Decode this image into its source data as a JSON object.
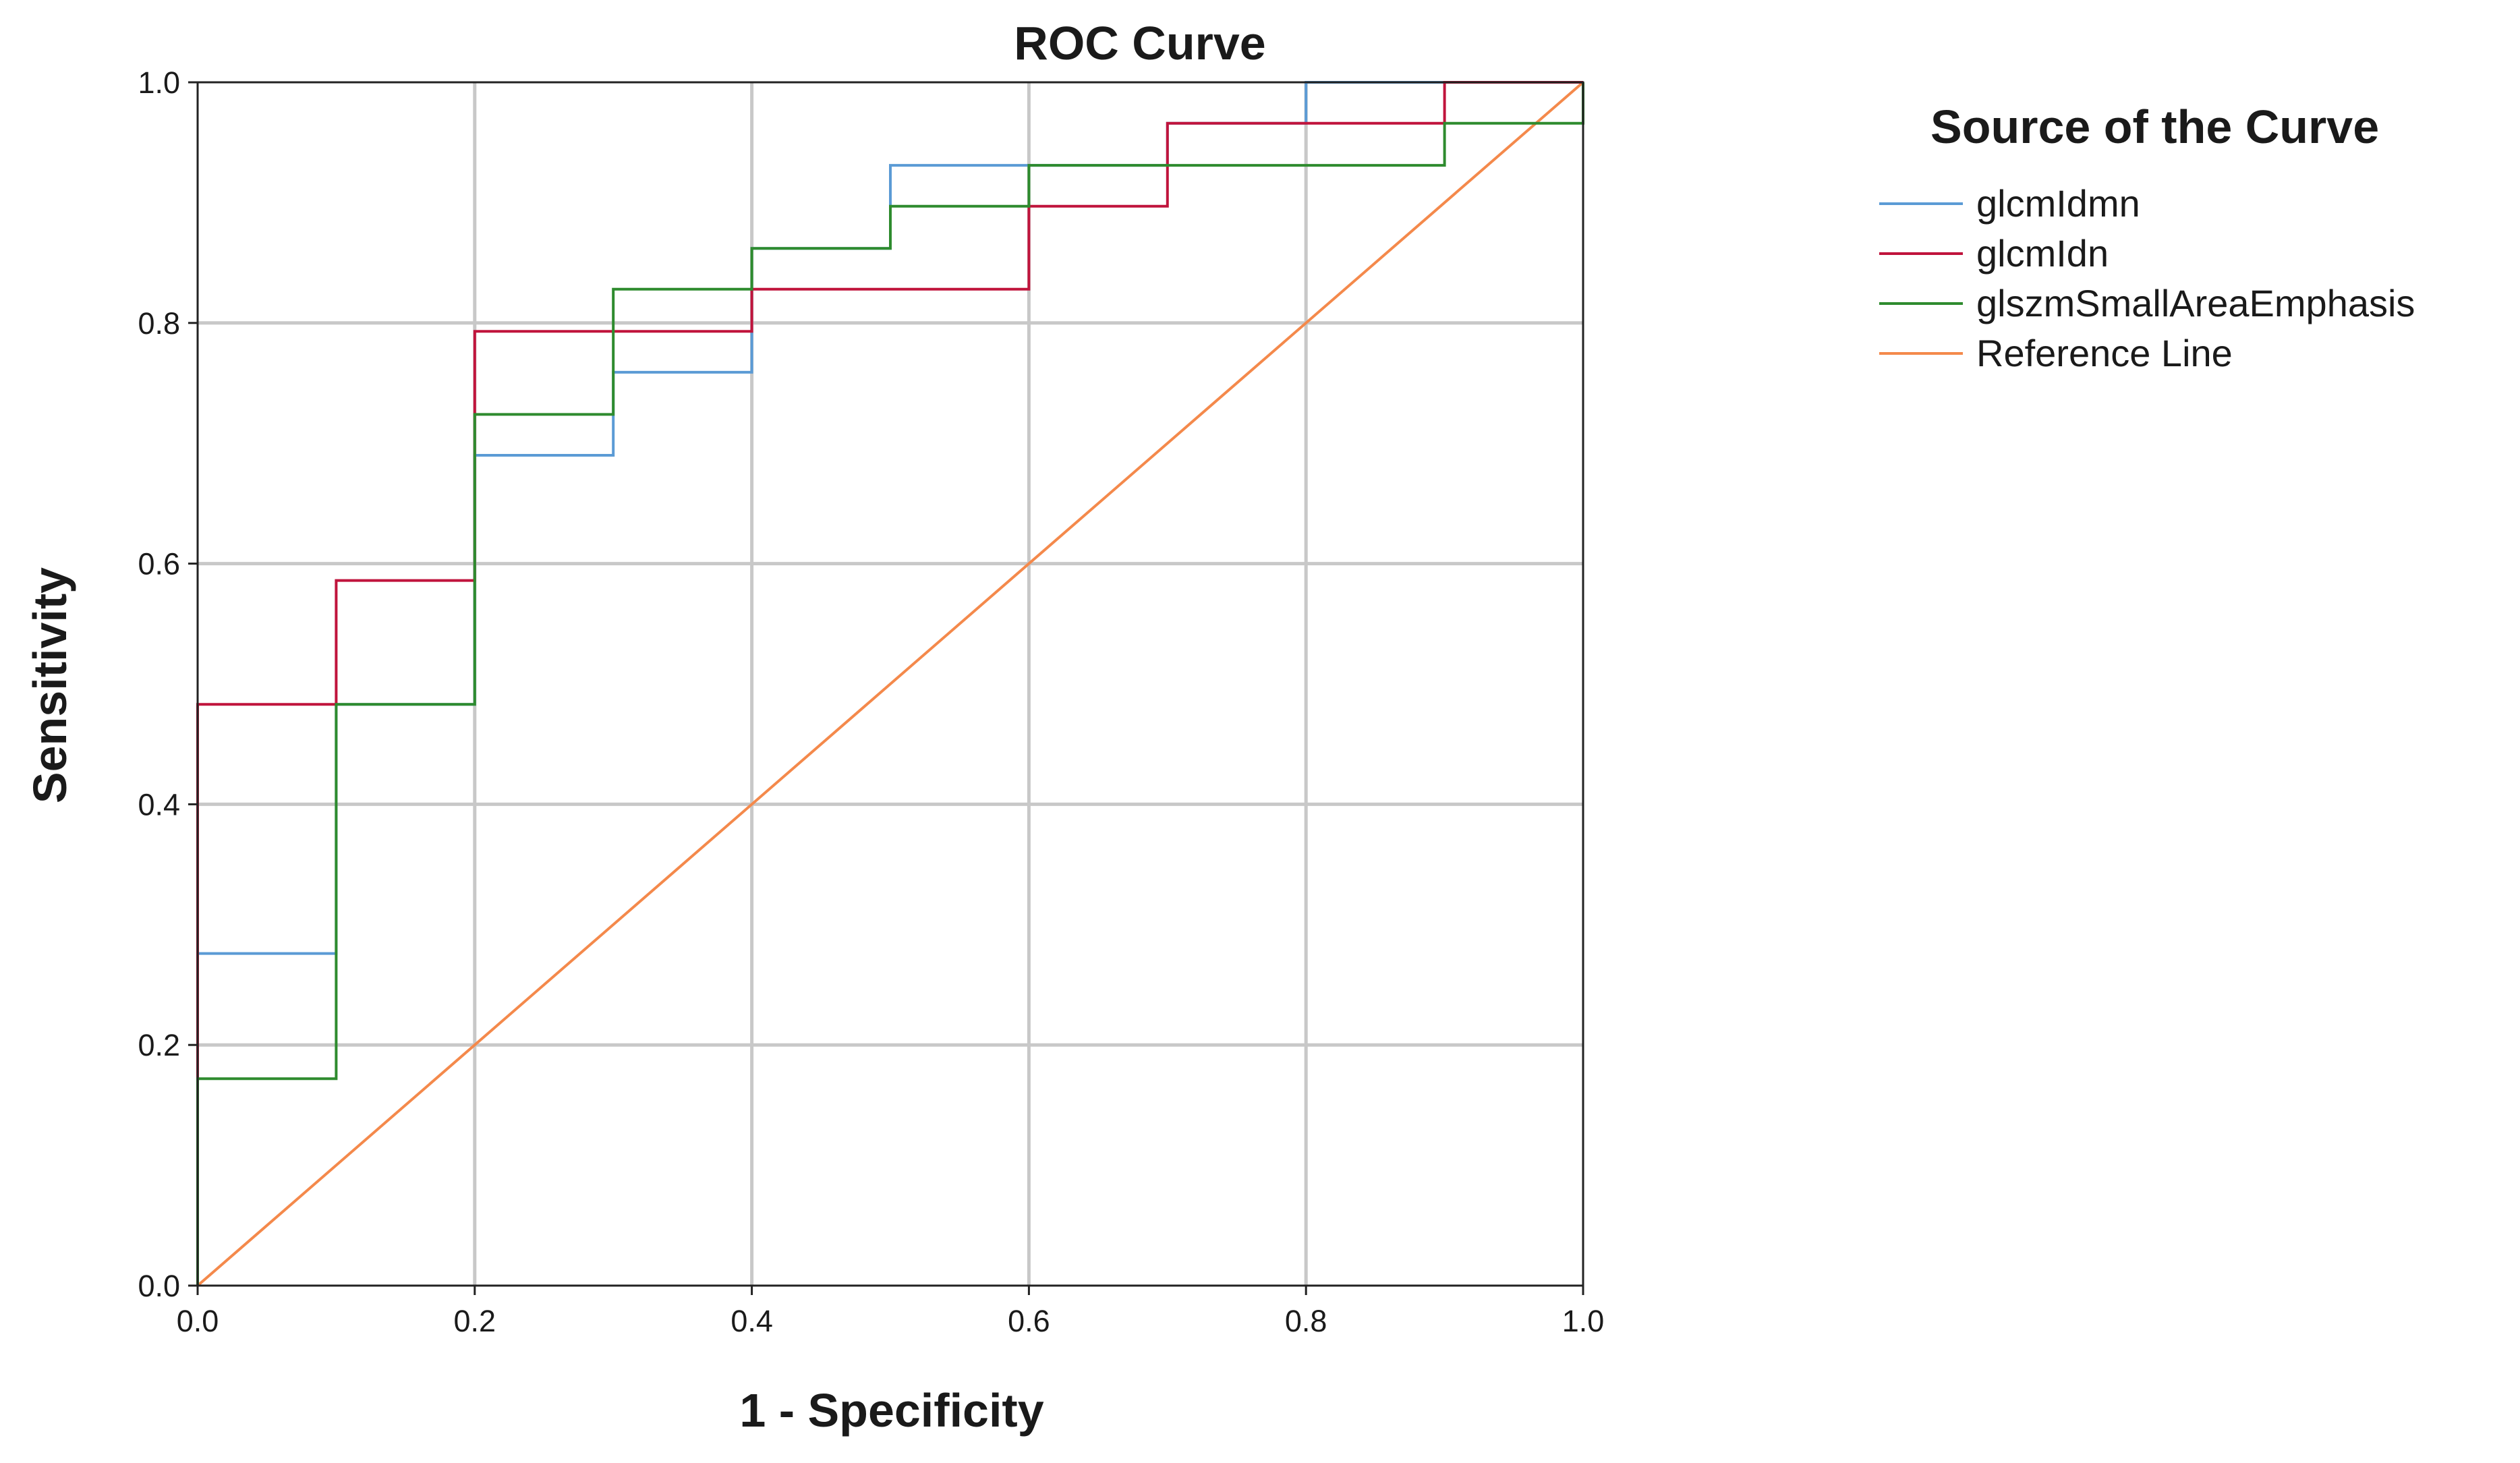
{
  "chart_data": {
    "type": "line",
    "title": "ROC Curve",
    "xlabel": "1 - Specificity",
    "ylabel": "Sensitivity",
    "xlim": [
      0,
      1
    ],
    "ylim": [
      0,
      1
    ],
    "grid": true,
    "x_ticks": [
      "0.0",
      "0.2",
      "0.4",
      "0.6",
      "0.8",
      "1.0"
    ],
    "y_ticks": [
      "0.0",
      "0.2",
      "0.4",
      "0.6",
      "0.8",
      "1.0"
    ],
    "legend_title": "Source of the Curve",
    "legend_position": "right",
    "series": [
      {
        "name": "glcmIdmn",
        "color": "#5b9bd5",
        "points": [
          [
            0,
            0
          ],
          [
            0,
            0.276
          ],
          [
            0.1,
            0.276
          ],
          [
            0.1,
            0.483
          ],
          [
            0.2,
            0.483
          ],
          [
            0.2,
            0.69
          ],
          [
            0.3,
            0.69
          ],
          [
            0.3,
            0.759
          ],
          [
            0.4,
            0.759
          ],
          [
            0.4,
            0.862
          ],
          [
            0.5,
            0.862
          ],
          [
            0.5,
            0.931
          ],
          [
            0.7,
            0.931
          ],
          [
            0.7,
            0.966
          ],
          [
            0.8,
            0.966
          ],
          [
            0.8,
            1.0
          ],
          [
            1.0,
            1.0
          ]
        ]
      },
      {
        "name": "glcmIdn",
        "color": "#c0143c",
        "points": [
          [
            0,
            0
          ],
          [
            0,
            0.483
          ],
          [
            0.1,
            0.483
          ],
          [
            0.1,
            0.586
          ],
          [
            0.2,
            0.586
          ],
          [
            0.2,
            0.793
          ],
          [
            0.4,
            0.793
          ],
          [
            0.4,
            0.828
          ],
          [
            0.6,
            0.828
          ],
          [
            0.6,
            0.897
          ],
          [
            0.7,
            0.897
          ],
          [
            0.7,
            0.966
          ],
          [
            0.9,
            0.966
          ],
          [
            0.9,
            1.0
          ],
          [
            1.0,
            1.0
          ]
        ]
      },
      {
        "name": "glszmSmallAreaEmphasis",
        "color": "#2e8b2e",
        "points": [
          [
            0,
            0
          ],
          [
            0,
            0.172
          ],
          [
            0.1,
            0.172
          ],
          [
            0.1,
            0.483
          ],
          [
            0.2,
            0.483
          ],
          [
            0.2,
            0.724
          ],
          [
            0.3,
            0.724
          ],
          [
            0.3,
            0.828
          ],
          [
            0.4,
            0.828
          ],
          [
            0.4,
            0.862
          ],
          [
            0.5,
            0.862
          ],
          [
            0.5,
            0.897
          ],
          [
            0.6,
            0.897
          ],
          [
            0.6,
            0.931
          ],
          [
            0.9,
            0.931
          ],
          [
            0.9,
            0.966
          ],
          [
            1.0,
            0.966
          ],
          [
            1.0,
            1.0
          ]
        ]
      },
      {
        "name": "Reference Line",
        "color": "#f4894b",
        "points": [
          [
            0,
            0
          ],
          [
            1,
            1
          ]
        ]
      }
    ]
  }
}
